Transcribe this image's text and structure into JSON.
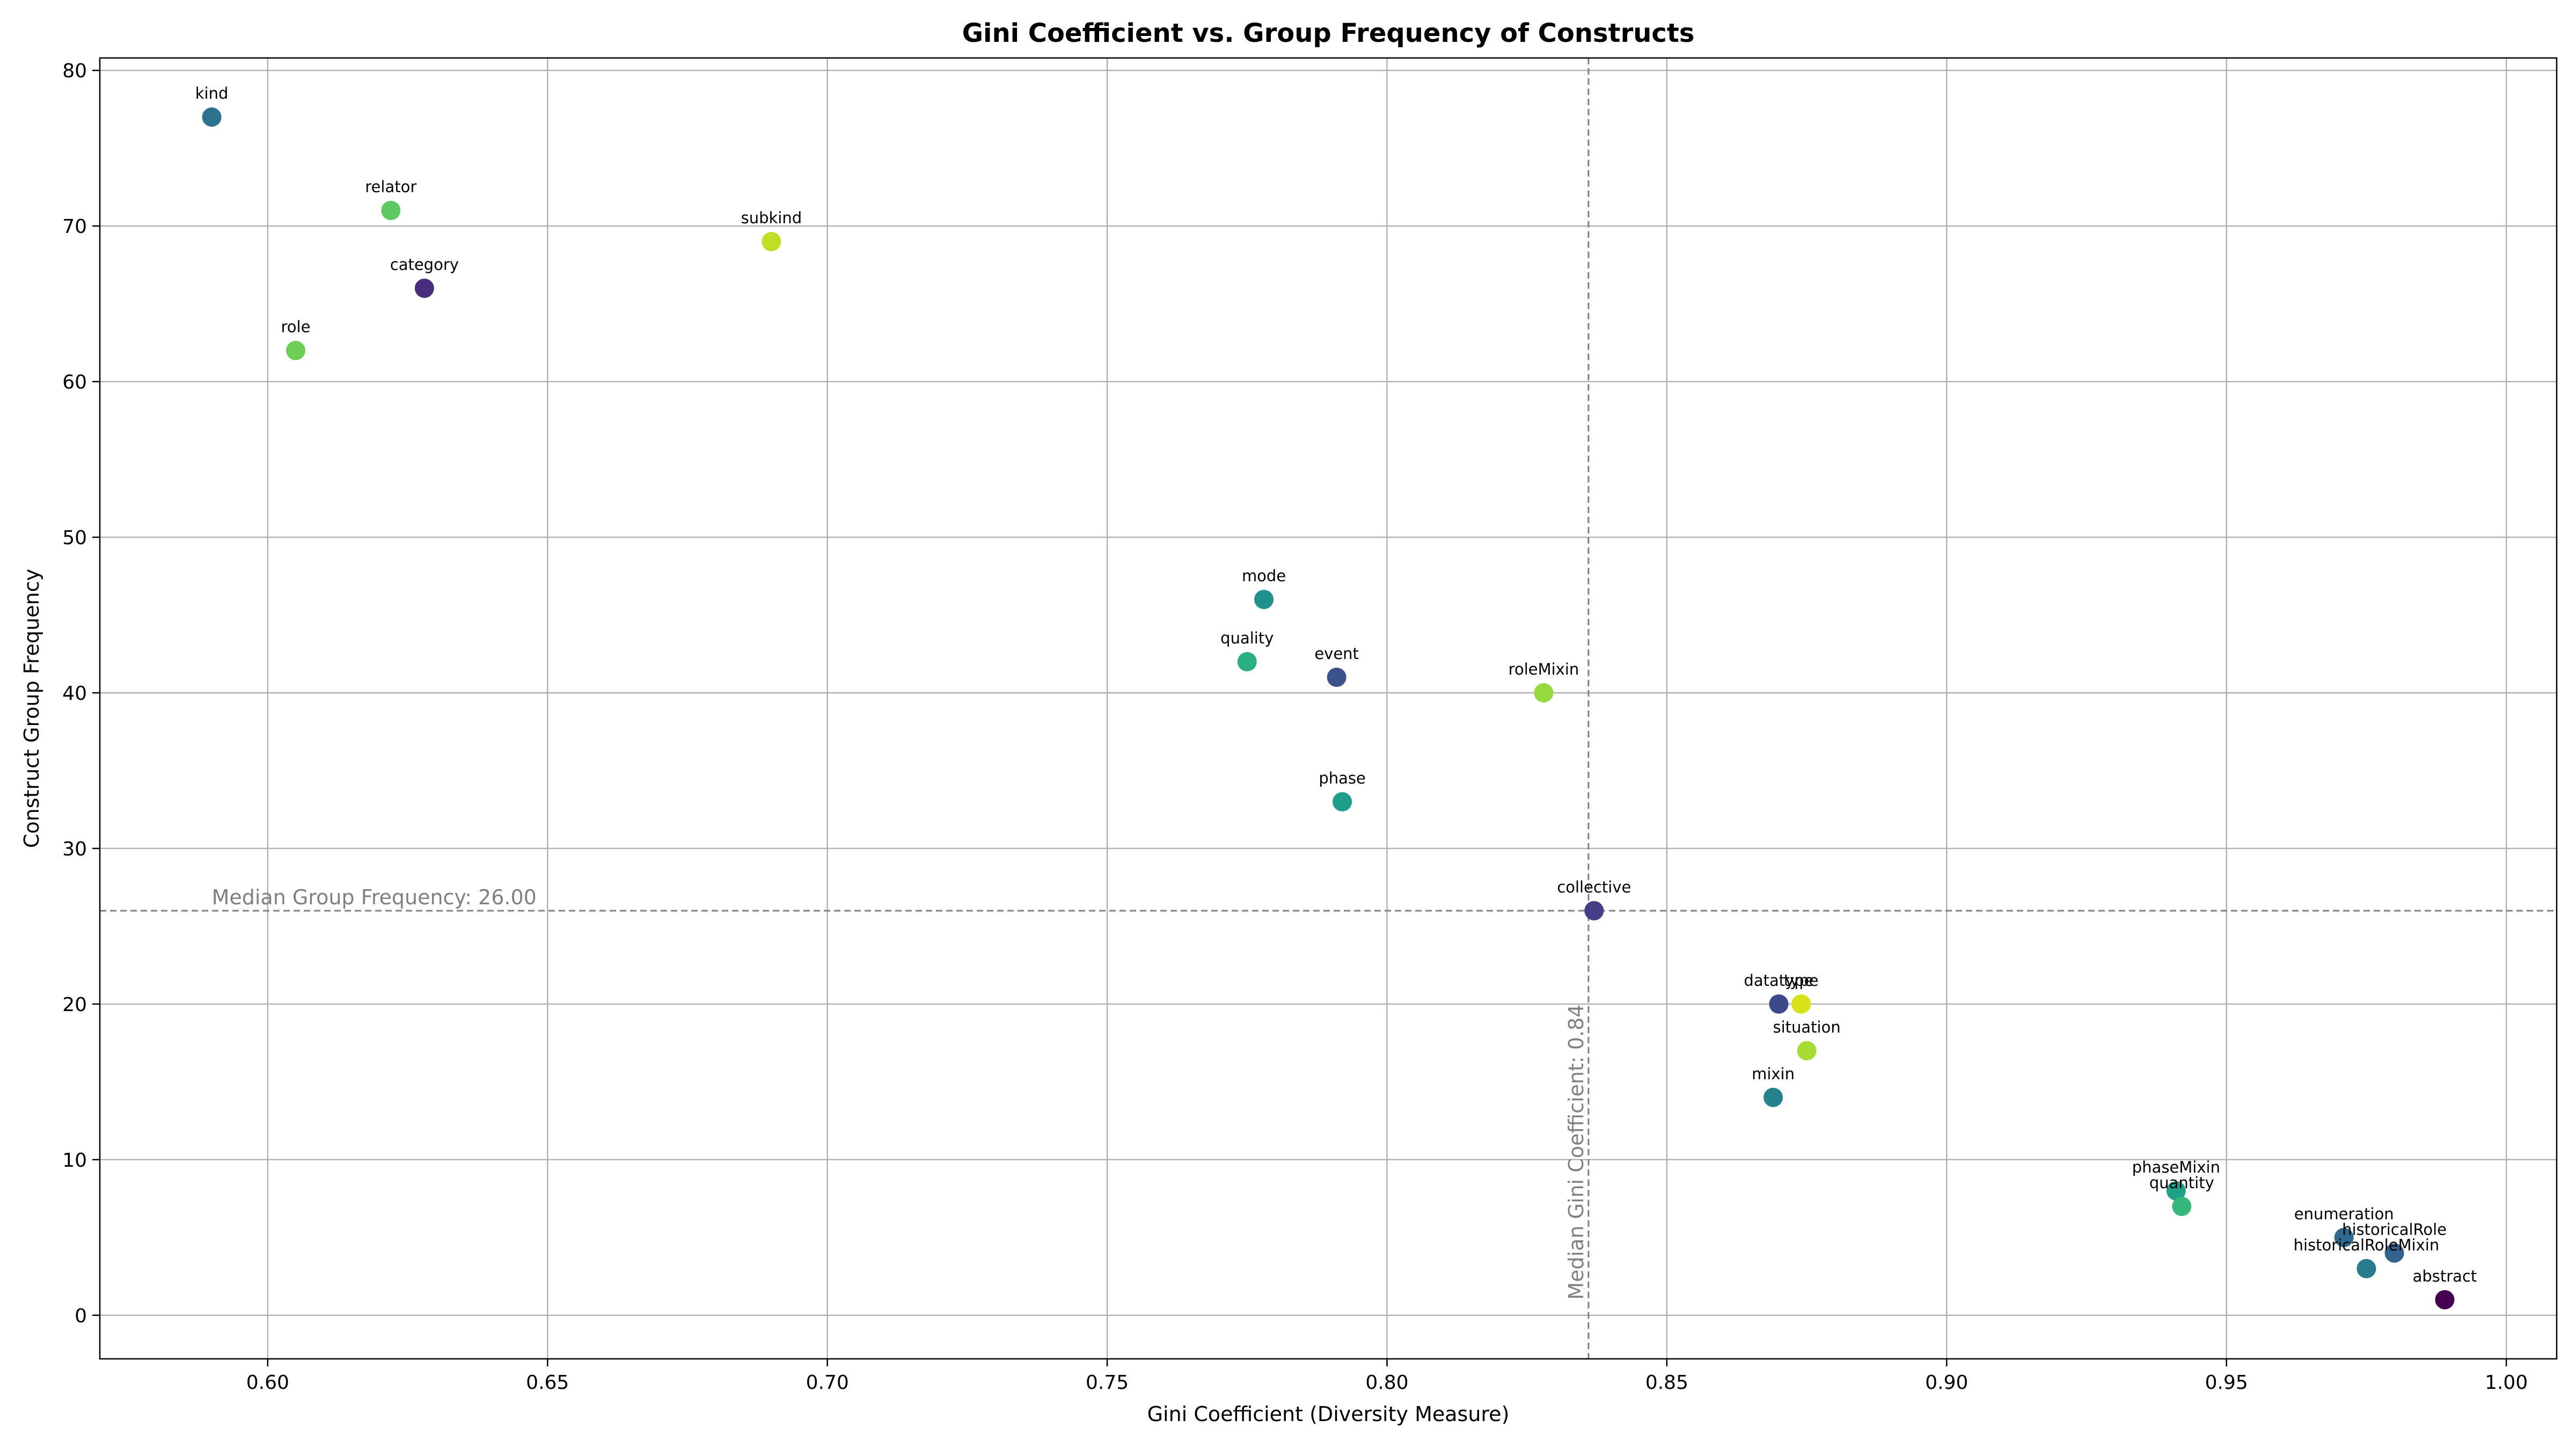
{
  "chart_data": {
    "type": "scatter",
    "title": "Gini Coefficient vs. Group Frequency of Constructs",
    "xlabel": "Gini Coefficient (Diversity Measure)",
    "ylabel": "Construct Group Frequency",
    "xlim": [
      0.57,
      1.009
    ],
    "ylim": [
      -2.8,
      80.8
    ],
    "xticks": [
      0.6,
      0.65,
      0.7,
      0.75,
      0.8,
      0.85,
      0.9,
      0.95,
      1.0
    ],
    "xtick_labels": [
      "0.60",
      "0.65",
      "0.70",
      "0.75",
      "0.80",
      "0.85",
      "0.90",
      "0.95",
      "1.00"
    ],
    "yticks": [
      0,
      10,
      20,
      30,
      40,
      50,
      60,
      70,
      80
    ],
    "ytick_labels": [
      "0",
      "10",
      "20",
      "30",
      "40",
      "50",
      "60",
      "70",
      "80"
    ],
    "grid": true,
    "colormap": "viridis",
    "median_gini": 0.836,
    "median_gini_label": "Median Gini Coefficient: 0.84",
    "median_frequency": 26,
    "median_frequency_label": "Median Group Frequency: 26.00",
    "points": [
      {
        "label": "kind",
        "x": 0.59,
        "y": 77,
        "color": "#2c728e"
      },
      {
        "label": "relator",
        "x": 0.622,
        "y": 71,
        "color": "#5ec962"
      },
      {
        "label": "subkind",
        "x": 0.69,
        "y": 69,
        "color": "#bddf26"
      },
      {
        "label": "category",
        "x": 0.628,
        "y": 66,
        "color": "#472d7b"
      },
      {
        "label": "role",
        "x": 0.605,
        "y": 62,
        "color": "#6ece58"
      },
      {
        "label": "mode",
        "x": 0.778,
        "y": 46,
        "color": "#21918c"
      },
      {
        "label": "quality",
        "x": 0.775,
        "y": 42,
        "color": "#2ab07f"
      },
      {
        "label": "event",
        "x": 0.791,
        "y": 41,
        "color": "#3b528b"
      },
      {
        "label": "roleMixin",
        "x": 0.828,
        "y": 40,
        "color": "#95d840"
      },
      {
        "label": "phase",
        "x": 0.792,
        "y": 33,
        "color": "#1f9e89"
      },
      {
        "label": "collective",
        "x": 0.837,
        "y": 26,
        "color": "#433e85"
      },
      {
        "label": "datatype",
        "x": 0.87,
        "y": 20,
        "color": "#3e4989"
      },
      {
        "label": "type",
        "x": 0.874,
        "y": 20,
        "color": "#d8e219"
      },
      {
        "label": "situation",
        "x": 0.875,
        "y": 17,
        "color": "#a8db34"
      },
      {
        "label": "mixin",
        "x": 0.869,
        "y": 14,
        "color": "#25838e"
      },
      {
        "label": "phaseMixin",
        "x": 0.941,
        "y": 8,
        "color": "#1fa187"
      },
      {
        "label": "quantity",
        "x": 0.942,
        "y": 7,
        "color": "#35b779"
      },
      {
        "label": "enumeration",
        "x": 0.971,
        "y": 5,
        "color": "#31688e"
      },
      {
        "label": "historicalRole",
        "x": 0.98,
        "y": 4,
        "color": "#33638d"
      },
      {
        "label": "historicalRoleMixin",
        "x": 0.975,
        "y": 3,
        "color": "#287c8e"
      },
      {
        "label": "abstract",
        "x": 0.989,
        "y": 1,
        "color": "#440154"
      }
    ]
  }
}
